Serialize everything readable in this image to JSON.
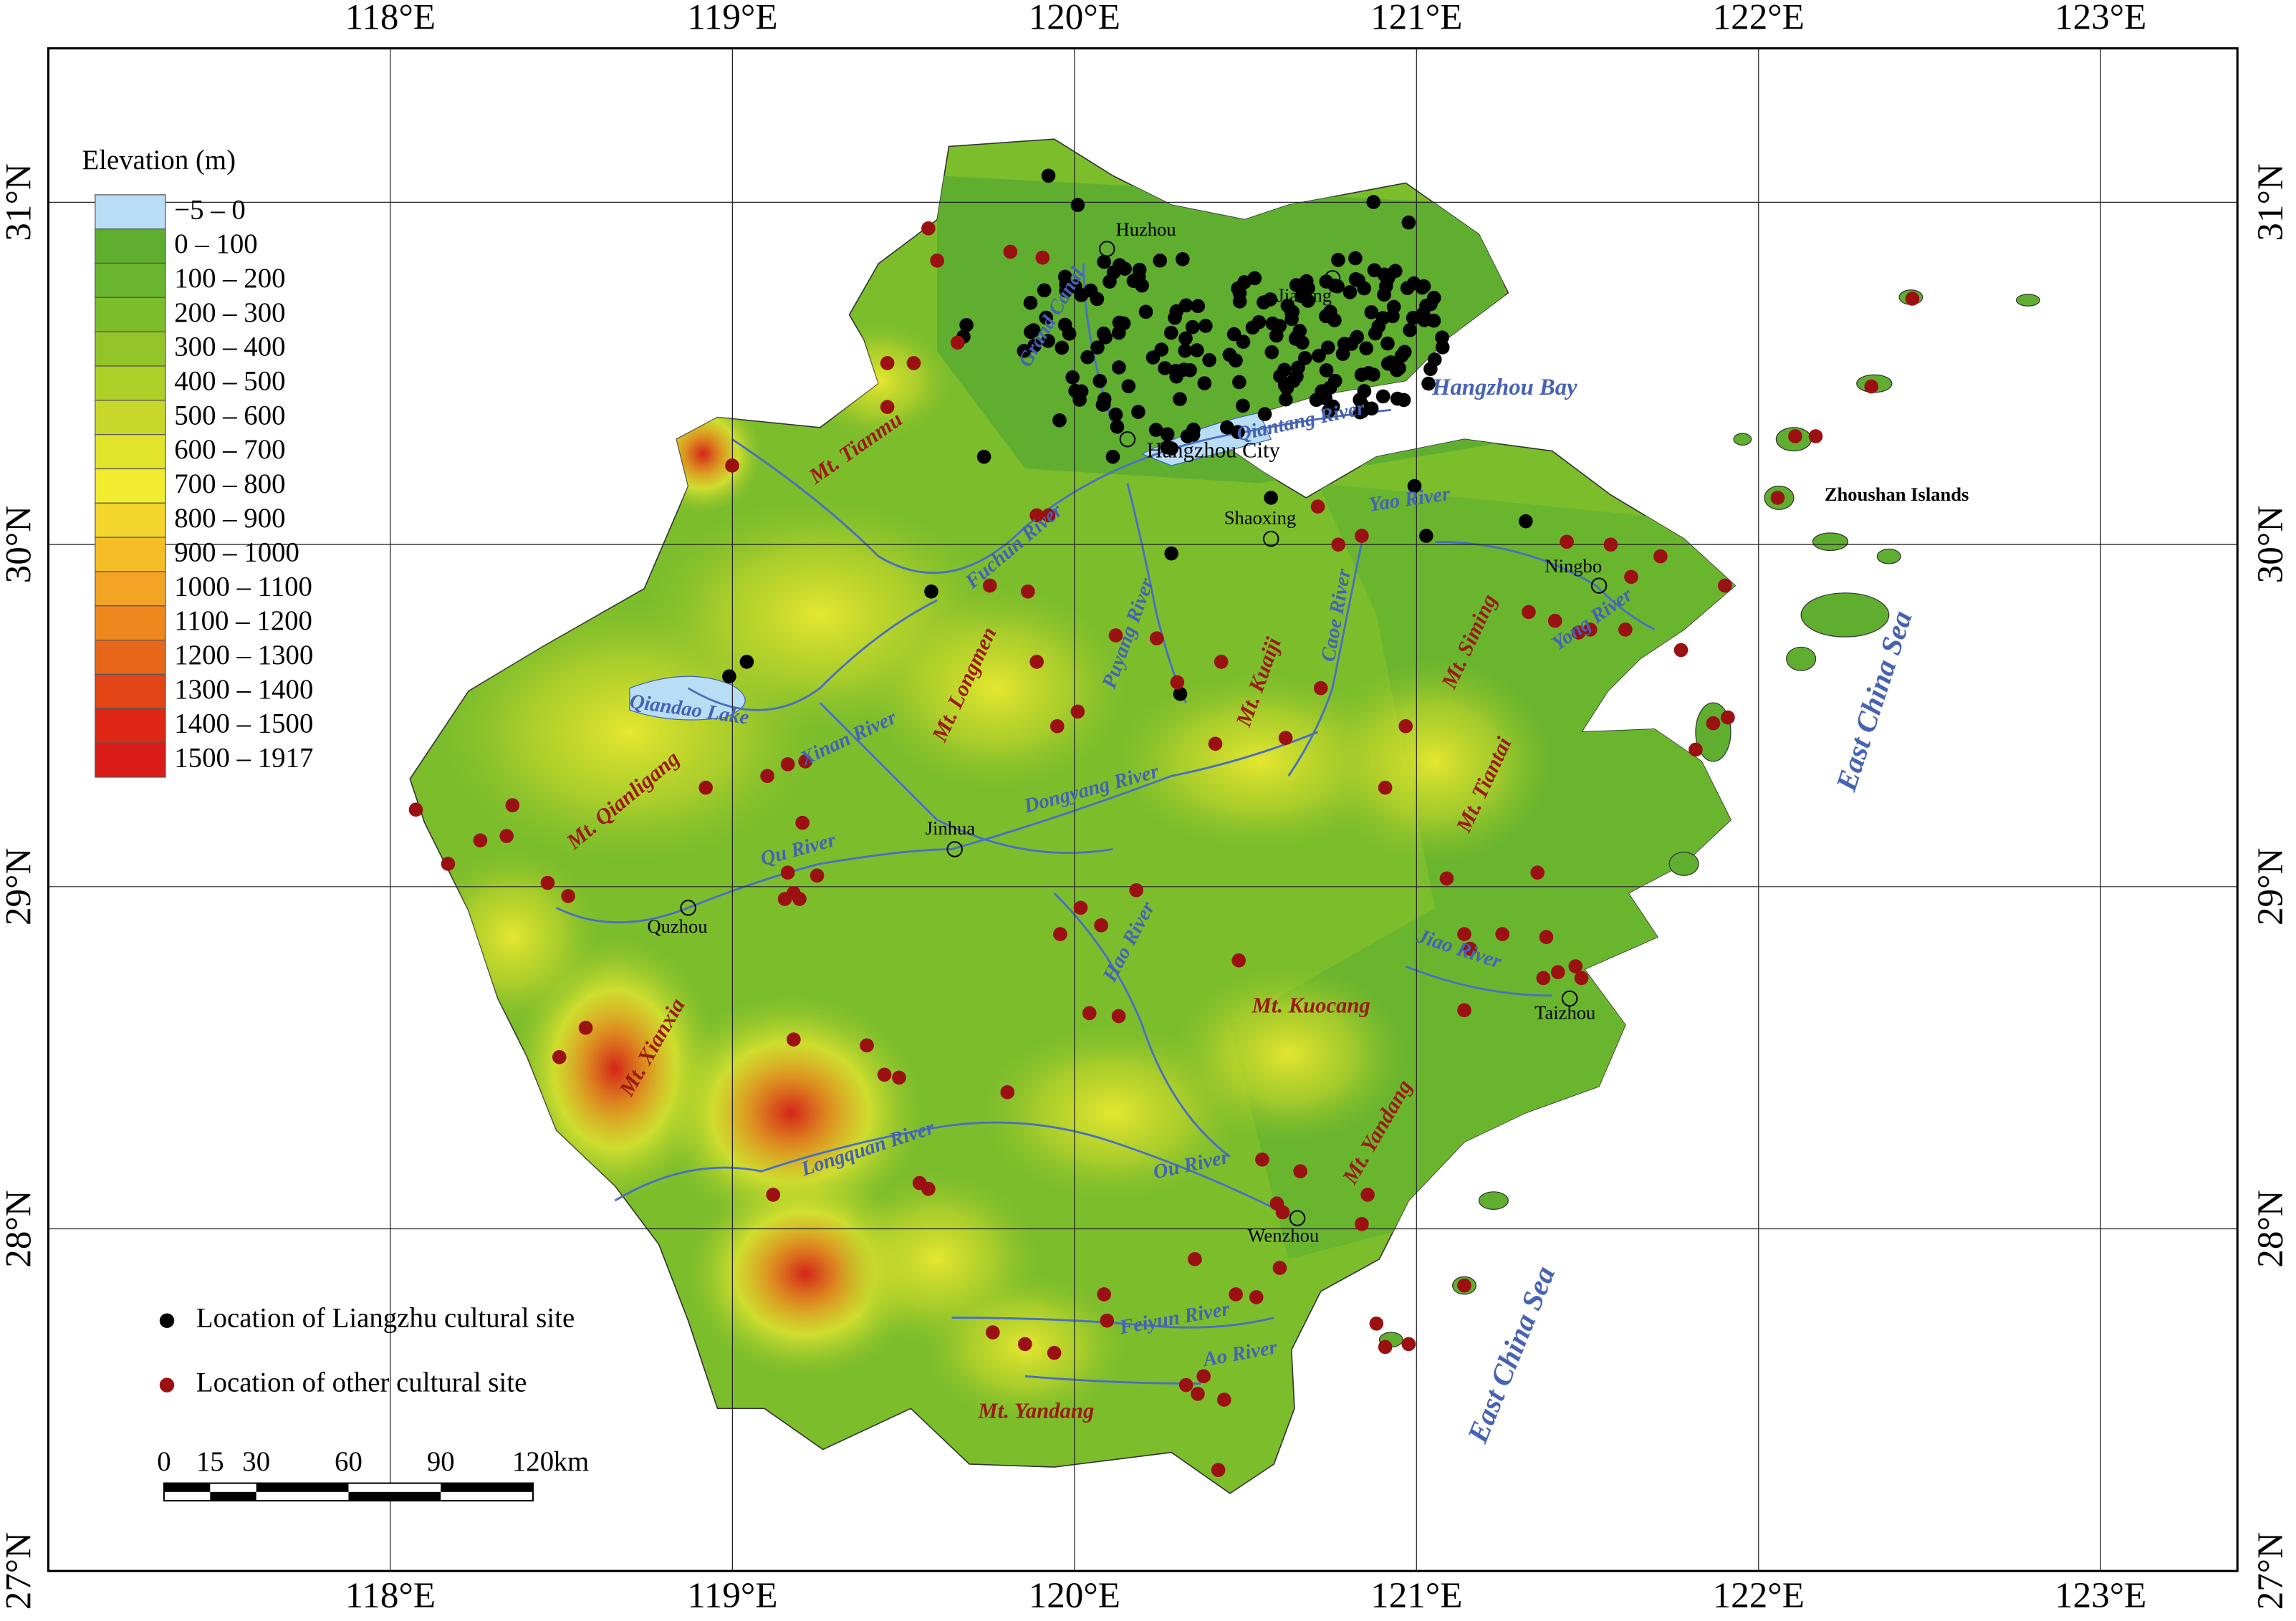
{
  "map": {
    "lon_ticks": [
      {
        "value": 118,
        "label": "118°E"
      },
      {
        "value": 119,
        "label": "119°E"
      },
      {
        "value": 120,
        "label": "120°E"
      },
      {
        "value": 121,
        "label": "121°E"
      },
      {
        "value": 122,
        "label": "122°E"
      },
      {
        "value": 123,
        "label": "123°E"
      }
    ],
    "lat_ticks": [
      {
        "value": 27,
        "label": "27°N"
      },
      {
        "value": 28,
        "label": "28°N"
      },
      {
        "value": 29,
        "label": "29°N"
      },
      {
        "value": 30,
        "label": "30°N"
      },
      {
        "value": 31,
        "label": "31°N"
      }
    ],
    "xlim": [
      117,
      123.4
    ],
    "ylim": [
      27,
      31.45
    ],
    "legend": {
      "title": "Elevation (m)",
      "classes": [
        {
          "label": "−5 – 0",
          "color": "#b9ddf4"
        },
        {
          "label": "0 – 100",
          "color": "#5fae30"
        },
        {
          "label": "100 – 200",
          "color": "#6ab52e"
        },
        {
          "label": "200 – 300",
          "color": "#7cbd2c"
        },
        {
          "label": "300 – 400",
          "color": "#93c52a"
        },
        {
          "label": "400 – 500",
          "color": "#aece28"
        },
        {
          "label": "500 – 600",
          "color": "#c8d82a"
        },
        {
          "label": "600 – 700",
          "color": "#e2e42c"
        },
        {
          "label": "700 – 800",
          "color": "#f2ec30"
        },
        {
          "label": "800 – 900",
          "color": "#f5d62c"
        },
        {
          "label": "900 – 1000",
          "color": "#f5be28"
        },
        {
          "label": "1000 – 1100",
          "color": "#f2a424"
        },
        {
          "label": "1100 – 1200",
          "color": "#ee881e"
        },
        {
          "label": "1200 – 1300",
          "color": "#e8661a"
        },
        {
          "label": "1300 – 1400",
          "color": "#e34416"
        },
        {
          "label": "1400 – 1500",
          "color": "#dd2614"
        },
        {
          "label": "1500 – 1917",
          "color": "#d81c18"
        }
      ]
    },
    "sites": [
      {
        "label": "Location of Liangzhu cultural site",
        "color": "#000000"
      },
      {
        "label": "Location of other cultural site",
        "color": "#9b1010"
      }
    ],
    "scale_bar": {
      "ticks": [
        0,
        15,
        30,
        60,
        90,
        120
      ],
      "unit": "km"
    },
    "cities": [
      "Huzhou",
      "Jiaxing",
      "Hangzhou City",
      "Shaoxing",
      "Ningbo",
      "Jinhua",
      "Quzhou",
      "Taizhou",
      "Wenzhou",
      "Zhoushan Islands"
    ],
    "waters": [
      "Hangzhou Bay",
      "Qiantang River",
      "Grand Canal",
      "Fuchun River",
      "Puyang River",
      "Yao River",
      "Caoe River",
      "Yong River",
      "Qiandao Lake",
      "Xinan River",
      "Dongyang River",
      "Qu River",
      "Hao River",
      "Jiao River",
      "Longquan River",
      "Ou River",
      "Feiyun River",
      "Ao River",
      "East China Sea",
      "East China Sea"
    ],
    "mountains": [
      "Mt. Tianmu",
      "Mt. Qianligang",
      "Mt. Longmen",
      "Mt. Kuaiji",
      "Mt. Siming",
      "Mt. Tiantai",
      "Mt. Xianxia",
      "Mt. Kuocang",
      "Mt. Yandang",
      "Mt. Yandang"
    ]
  }
}
